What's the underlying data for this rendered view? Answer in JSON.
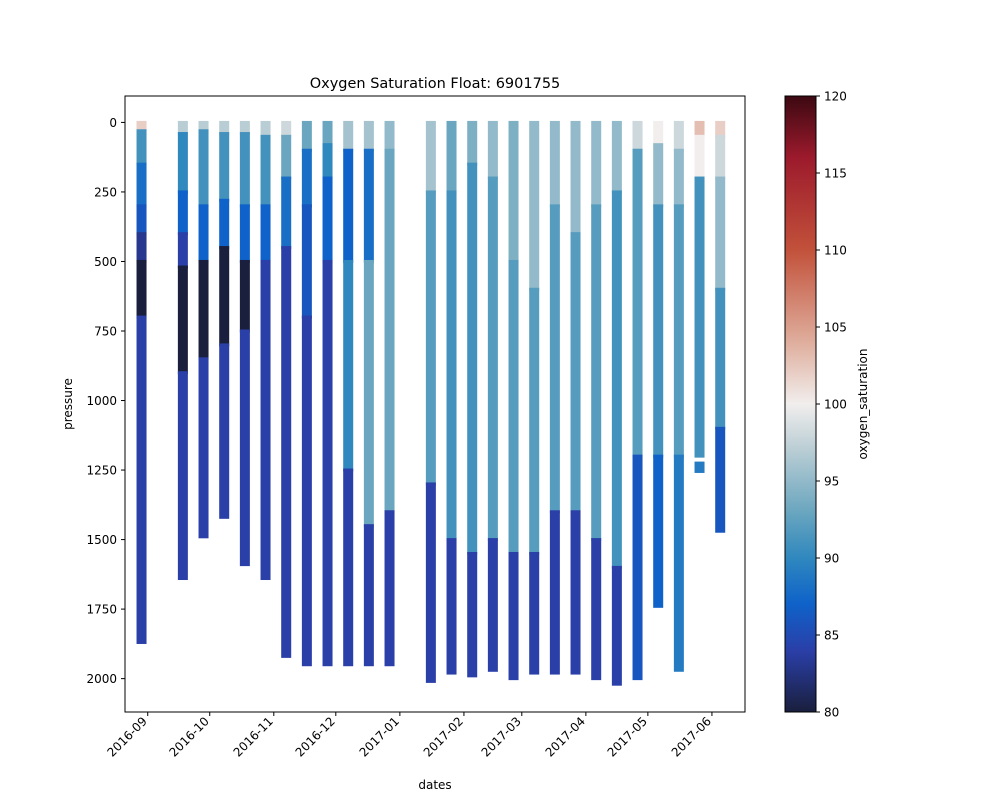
{
  "chart_data": {
    "type": "scatter",
    "title": "Oxygen Saturation Float: 6901755",
    "xlabel": "dates",
    "ylabel": "pressure",
    "y_inverted": true,
    "ylim": [
      2120,
      -95
    ],
    "xlim": [
      "2016-08-21",
      "2017-06-17"
    ],
    "x_ticks": [
      "2016-09",
      "2016-10",
      "2016-11",
      "2016-12",
      "2017-01",
      "2017-02",
      "2017-03",
      "2017-04",
      "2017-05",
      "2017-06"
    ],
    "y_ticks": [
      0,
      250,
      500,
      750,
      1000,
      1250,
      1500,
      1750,
      2000
    ],
    "grid": false,
    "colorbar": {
      "label": "oxygen_saturation",
      "range": [
        80,
        120
      ],
      "ticks": [
        80,
        85,
        90,
        95,
        100,
        105,
        110,
        115,
        120
      ],
      "colormap": "balance",
      "stops": [
        {
          "v": 80,
          "color": "#1a1f3d"
        },
        {
          "v": 84,
          "color": "#2a3fa8"
        },
        {
          "v": 87,
          "color": "#0e62c9"
        },
        {
          "v": 90,
          "color": "#2f88be"
        },
        {
          "v": 93,
          "color": "#6aa6bf"
        },
        {
          "v": 97,
          "color": "#b9cdd4"
        },
        {
          "v": 100,
          "color": "#f1eeed"
        },
        {
          "v": 104,
          "color": "#dfae9d"
        },
        {
          "v": 110,
          "color": "#c2513a"
        },
        {
          "v": 116,
          "color": "#9c1a2c"
        },
        {
          "v": 120,
          "color": "#3c0912"
        }
      ]
    },
    "profiles": [
      {
        "date": "2016-08-29",
        "max_pressure": 1870,
        "segments": [
          [
            0,
            30,
            102
          ],
          [
            30,
            150,
            91
          ],
          [
            150,
            300,
            88
          ],
          [
            300,
            400,
            86
          ],
          [
            400,
            500,
            83
          ],
          [
            500,
            700,
            80
          ],
          [
            700,
            1870,
            84
          ]
        ]
      },
      {
        "date": "2016-09-18",
        "max_pressure": 1640,
        "segments": [
          [
            0,
            40,
            97
          ],
          [
            40,
            250,
            90
          ],
          [
            250,
            400,
            87
          ],
          [
            400,
            520,
            84
          ],
          [
            520,
            900,
            80
          ],
          [
            900,
            1640,
            84
          ]
        ]
      },
      {
        "date": "2016-09-28",
        "max_pressure": 1490,
        "segments": [
          [
            0,
            30,
            97
          ],
          [
            30,
            300,
            91
          ],
          [
            300,
            500,
            87
          ],
          [
            500,
            850,
            80
          ],
          [
            850,
            1490,
            84
          ]
        ]
      },
      {
        "date": "2016-10-08",
        "max_pressure": 1420,
        "segments": [
          [
            0,
            40,
            97
          ],
          [
            40,
            280,
            91
          ],
          [
            280,
            450,
            87
          ],
          [
            450,
            800,
            80
          ],
          [
            800,
            1420,
            84
          ]
        ]
      },
      {
        "date": "2016-10-18",
        "max_pressure": 1590,
        "segments": [
          [
            0,
            40,
            97
          ],
          [
            40,
            300,
            91
          ],
          [
            300,
            500,
            87
          ],
          [
            500,
            750,
            80
          ],
          [
            750,
            1590,
            84
          ]
        ]
      },
      {
        "date": "2016-10-28",
        "max_pressure": 1640,
        "segments": [
          [
            0,
            50,
            97
          ],
          [
            50,
            300,
            91
          ],
          [
            300,
            500,
            87
          ],
          [
            500,
            1640,
            84
          ]
        ]
      },
      {
        "date": "2016-11-07",
        "max_pressure": 1920,
        "segments": [
          [
            0,
            50,
            98
          ],
          [
            50,
            200,
            93
          ],
          [
            200,
            450,
            88
          ],
          [
            450,
            1920,
            84
          ]
        ]
      },
      {
        "date": "2016-11-17",
        "max_pressure": 1950,
        "segments": [
          [
            0,
            100,
            93
          ],
          [
            100,
            300,
            88
          ],
          [
            300,
            700,
            86
          ],
          [
            700,
            1950,
            84
          ]
        ]
      },
      {
        "date": "2016-11-27",
        "max_pressure": 1950,
        "segments": [
          [
            0,
            80,
            93
          ],
          [
            80,
            200,
            90
          ],
          [
            200,
            500,
            87
          ],
          [
            500,
            1950,
            84
          ]
        ]
      },
      {
        "date": "2016-12-07",
        "max_pressure": 1950,
        "segments": [
          [
            0,
            100,
            96
          ],
          [
            100,
            500,
            87
          ],
          [
            500,
            1250,
            90
          ],
          [
            1250,
            1950,
            84
          ]
        ]
      },
      {
        "date": "2016-12-17",
        "max_pressure": 1950,
        "segments": [
          [
            0,
            100,
            96
          ],
          [
            100,
            500,
            88
          ],
          [
            500,
            1450,
            93
          ],
          [
            1450,
            1950,
            84
          ]
        ]
      },
      {
        "date": "2016-12-27",
        "max_pressure": 1950,
        "segments": [
          [
            0,
            100,
            95
          ],
          [
            100,
            1400,
            93
          ],
          [
            1400,
            1950,
            84
          ]
        ]
      },
      {
        "date": "2017-01-16",
        "max_pressure": 2010,
        "segments": [
          [
            0,
            250,
            96
          ],
          [
            250,
            1300,
            92
          ],
          [
            1300,
            2010,
            84
          ]
        ]
      },
      {
        "date": "2017-01-26",
        "max_pressure": 1980,
        "segments": [
          [
            0,
            250,
            93
          ],
          [
            250,
            1500,
            91
          ],
          [
            1500,
            1980,
            84
          ]
        ]
      },
      {
        "date": "2017-02-05",
        "max_pressure": 1990,
        "segments": [
          [
            0,
            150,
            94
          ],
          [
            150,
            1550,
            91
          ],
          [
            1550,
            1990,
            84
          ]
        ]
      },
      {
        "date": "2017-02-15",
        "max_pressure": 1970,
        "segments": [
          [
            0,
            200,
            95
          ],
          [
            200,
            1500,
            92
          ],
          [
            1500,
            1970,
            84
          ]
        ]
      },
      {
        "date": "2017-02-25",
        "max_pressure": 2000,
        "segments": [
          [
            0,
            500,
            94
          ],
          [
            500,
            1550,
            92
          ],
          [
            1550,
            2000,
            84
          ]
        ]
      },
      {
        "date": "2017-03-07",
        "max_pressure": 1980,
        "segments": [
          [
            0,
            600,
            95
          ],
          [
            600,
            1550,
            92
          ],
          [
            1550,
            1980,
            84
          ]
        ]
      },
      {
        "date": "2017-03-17",
        "max_pressure": 1980,
        "segments": [
          [
            0,
            300,
            95
          ],
          [
            300,
            1400,
            92
          ],
          [
            1400,
            1980,
            84
          ]
        ]
      },
      {
        "date": "2017-03-27",
        "max_pressure": 1980,
        "segments": [
          [
            0,
            400,
            95
          ],
          [
            400,
            1400,
            92
          ],
          [
            1400,
            1980,
            84
          ]
        ]
      },
      {
        "date": "2017-04-06",
        "max_pressure": 2000,
        "segments": [
          [
            0,
            300,
            95
          ],
          [
            300,
            1500,
            92
          ],
          [
            1500,
            2000,
            84
          ]
        ]
      },
      {
        "date": "2017-04-16",
        "max_pressure": 2020,
        "segments": [
          [
            0,
            250,
            95
          ],
          [
            250,
            1600,
            91
          ],
          [
            1600,
            2020,
            84
          ]
        ]
      },
      {
        "date": "2017-04-26",
        "max_pressure": 2000,
        "segments": [
          [
            0,
            100,
            98
          ],
          [
            100,
            1200,
            92
          ],
          [
            1200,
            2000,
            86
          ]
        ]
      },
      {
        "date": "2017-05-06",
        "max_pressure": 1740,
        "segments": [
          [
            0,
            80,
            100
          ],
          [
            80,
            300,
            95
          ],
          [
            300,
            1200,
            91
          ],
          [
            1200,
            1740,
            87
          ]
        ]
      },
      {
        "date": "2017-05-16",
        "max_pressure": 1970,
        "segments": [
          [
            0,
            100,
            98
          ],
          [
            100,
            300,
            95
          ],
          [
            300,
            1200,
            92
          ],
          [
            1200,
            1970,
            89
          ]
        ]
      },
      {
        "date": "2017-05-26",
        "max_pressure": 1200,
        "segments": [
          [
            0,
            50,
            103
          ],
          [
            50,
            200,
            100
          ],
          [
            200,
            1200,
            91
          ]
        ]
      },
      {
        "date": "2017-05-26",
        "max_pressure": 1255,
        "segments": [
          [
            1225,
            1255,
            89
          ]
        ]
      },
      {
        "date": "2017-06-05",
        "max_pressure": 1470,
        "segments": [
          [
            0,
            50,
            102
          ],
          [
            50,
            200,
            98
          ],
          [
            200,
            600,
            95
          ],
          [
            600,
            1100,
            91
          ],
          [
            1100,
            1470,
            86
          ]
        ]
      }
    ]
  }
}
